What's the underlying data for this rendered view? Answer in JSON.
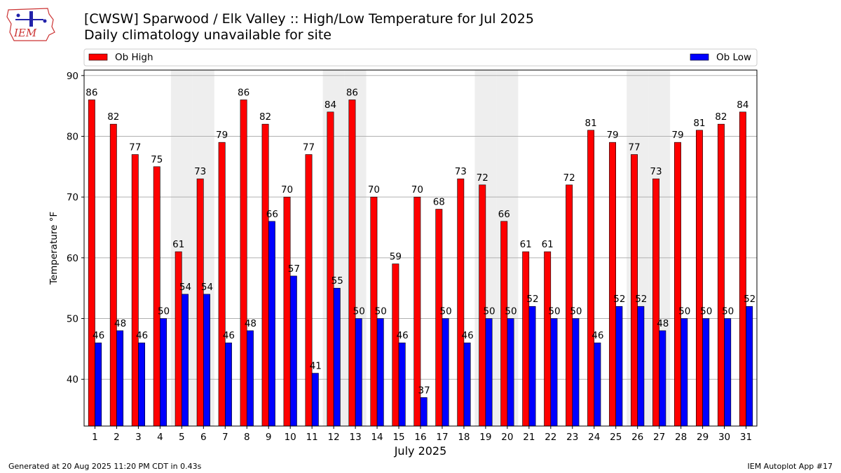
{
  "header": {
    "title_line1": "[CWSW] Sparwood / Elk Valley :: High/Low Temperature for Jul 2025",
    "title_line2": "Daily climatology unavailable for site",
    "logo_text": "IEM"
  },
  "footer": {
    "generated": "Generated at 20 Aug 2025 11:20 PM CDT in 0.43s",
    "app": "IEM Autoplot App #17"
  },
  "colors": {
    "high": "#ff0000",
    "low": "#0000ff",
    "weekend_band": "#eeeeee",
    "grid": "#b0b0b0"
  },
  "chart_data": {
    "type": "bar",
    "title": "[CWSW] Sparwood / Elk Valley :: High/Low Temperature for Jul 2025",
    "subtitle": "Daily climatology unavailable for site",
    "xlabel": "July 2025",
    "ylabel": "Temperature °F",
    "ylim": [
      32.3,
      90.9
    ],
    "yticks": [
      40,
      50,
      60,
      70,
      80,
      90
    ],
    "grid": true,
    "legend_placement": "top",
    "categories": [
      "1",
      "2",
      "3",
      "4",
      "5",
      "6",
      "7",
      "8",
      "9",
      "10",
      "11",
      "12",
      "13",
      "14",
      "15",
      "16",
      "17",
      "18",
      "19",
      "20",
      "21",
      "22",
      "23",
      "24",
      "25",
      "26",
      "27",
      "28",
      "29",
      "30",
      "31"
    ],
    "weekend_days": [
      5,
      6,
      12,
      13,
      19,
      20,
      26,
      27
    ],
    "series": [
      {
        "name": "Ob High",
        "color": "#ff0000",
        "values": [
          86,
          82,
          77,
          75,
          61,
          73,
          79,
          86,
          82,
          70,
          77,
          84,
          86,
          70,
          59,
          70,
          68,
          73,
          72,
          66,
          61,
          61,
          72,
          81,
          79,
          77,
          73,
          79,
          81,
          82,
          84
        ]
      },
      {
        "name": "Ob Low",
        "color": "#0000ff",
        "values": [
          46,
          48,
          46,
          50,
          54,
          54,
          46,
          48,
          66,
          57,
          41,
          55,
          50,
          50,
          46,
          37,
          50,
          46,
          50,
          50,
          52,
          50,
          50,
          46,
          52,
          52,
          48,
          50,
          50,
          50,
          52
        ]
      }
    ]
  }
}
